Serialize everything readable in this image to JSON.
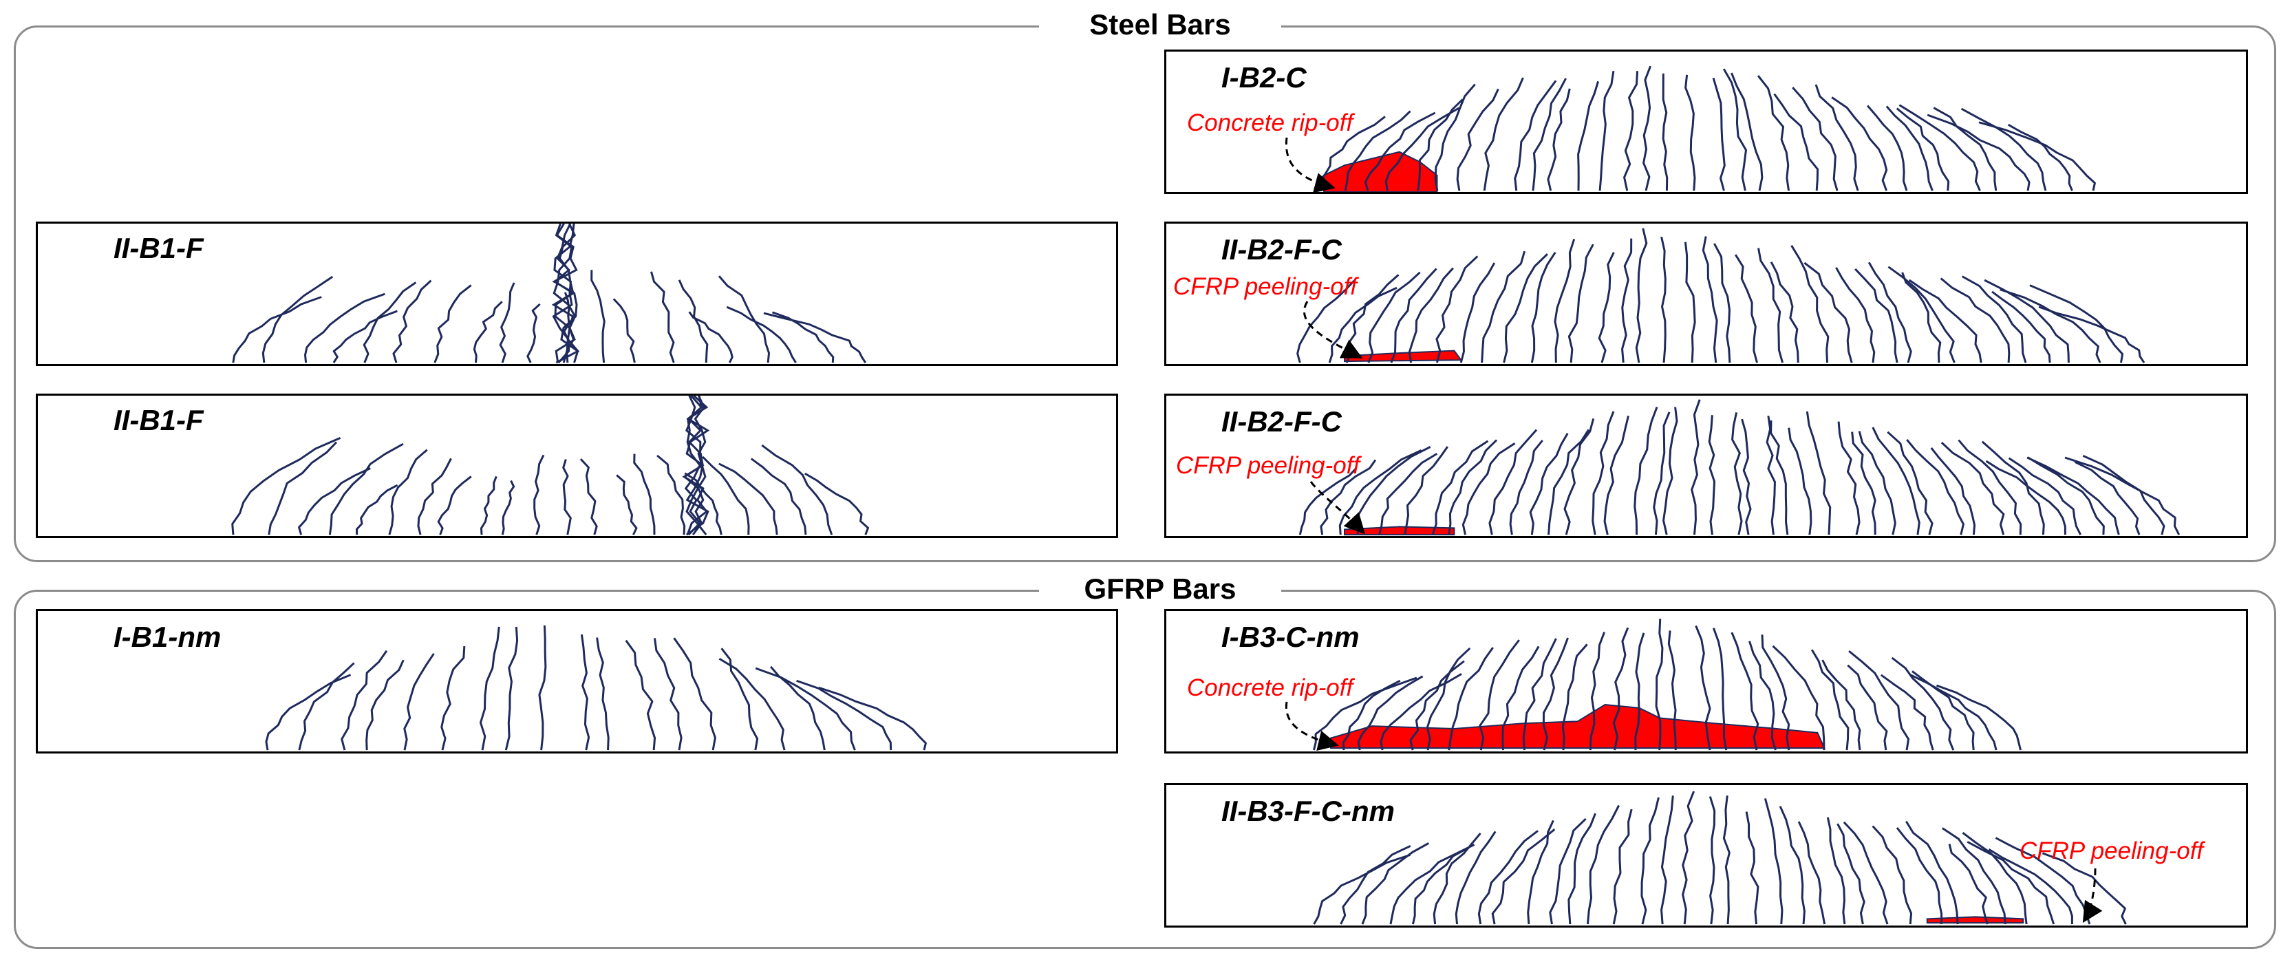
{
  "groups": {
    "steel": {
      "title": "Steel Bars"
    },
    "gfrp": {
      "title": "GFRP Bars"
    }
  },
  "specimens": [
    {
      "id": "p1",
      "label": "I-B2-C"
    },
    {
      "id": "p2",
      "label": "II-B1-F"
    },
    {
      "id": "p3",
      "label": "II-B2-F-C"
    },
    {
      "id": "p4",
      "label": "II-B1-F"
    },
    {
      "id": "p5",
      "label": "II-B2-F-C"
    },
    {
      "id": "p6",
      "label": "I-B1-nm"
    },
    {
      "id": "p7",
      "label": "I-B3-C-nm"
    },
    {
      "id": "p8",
      "label": "II-B3-F-C-nm"
    }
  ],
  "annotations": {
    "p1": "Concrete rip-off",
    "p3": "CFRP peeling-off",
    "p5": "CFRP peeling-off",
    "p7": "Concrete rip-off",
    "p8": "CFRP peeling-off"
  },
  "colors": {
    "crack": "#1f2a5c",
    "damage": "#ff0000",
    "annotation_text": "#ff0000",
    "group_frame": "#8c8c8c",
    "panel_border": "#000000"
  }
}
